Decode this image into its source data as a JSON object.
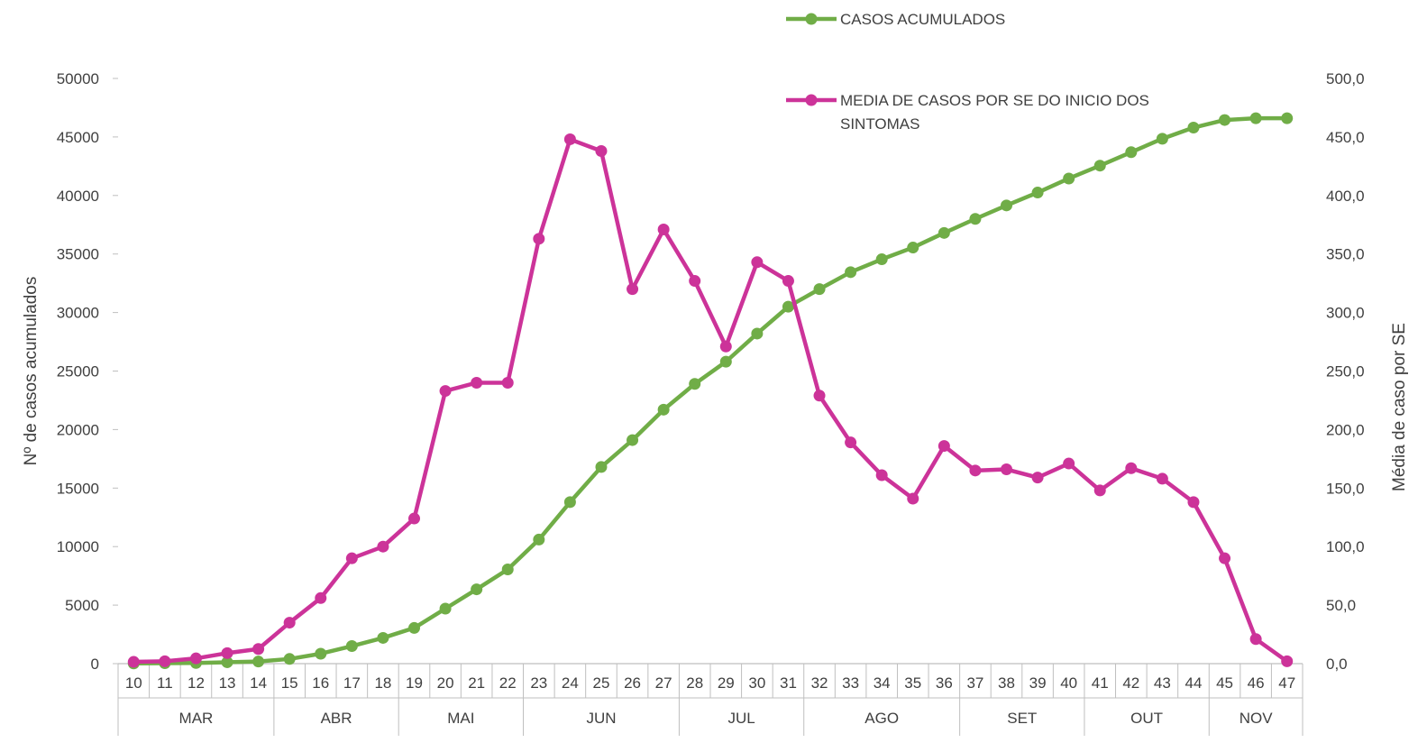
{
  "chart_data": {
    "type": "line",
    "title": "",
    "x": [
      "10",
      "11",
      "12",
      "13",
      "14",
      "15",
      "16",
      "17",
      "18",
      "19",
      "20",
      "21",
      "22",
      "23",
      "24",
      "25",
      "26",
      "27",
      "28",
      "29",
      "30",
      "31",
      "32",
      "33",
      "34",
      "35",
      "36",
      "37",
      "38",
      "39",
      "40",
      "41",
      "42",
      "43",
      "44",
      "45",
      "46",
      "47"
    ],
    "month_groups": [
      {
        "label": "MAR",
        "start": 0,
        "end": 4
      },
      {
        "label": "ABR",
        "start": 5,
        "end": 8
      },
      {
        "label": "MAI",
        "start": 9,
        "end": 12
      },
      {
        "label": "JUN",
        "start": 13,
        "end": 17
      },
      {
        "label": "JUL",
        "start": 18,
        "end": 21
      },
      {
        "label": "AGO",
        "start": 22,
        "end": 26
      },
      {
        "label": "SET",
        "start": 27,
        "end": 30
      },
      {
        "label": "OUT",
        "start": 31,
        "end": 34
      },
      {
        "label": "NOV",
        "start": 35,
        "end": 37
      }
    ],
    "y_left": {
      "label": "Nº de casos acumulados",
      "ylim": [
        0,
        50000
      ],
      "ticks": [
        "0",
        "5000",
        "10000",
        "15000",
        "20000",
        "25000",
        "30000",
        "35000",
        "40000",
        "45000",
        "50000"
      ]
    },
    "y_right": {
      "label": "Média de caso por SE",
      "ylim": [
        0,
        500
      ],
      "ticks": [
        "0,0",
        "50,0",
        "100,0",
        "150,0",
        "200,0",
        "250,0",
        "300,0",
        "350,0",
        "400,0",
        "450,0",
        "500,0"
      ]
    },
    "series": [
      {
        "name": "CASOS ACUMULADOS",
        "axis": "left",
        "color": "#70ad47",
        "values": [
          20,
          40,
          60,
          120,
          180,
          400,
          850,
          1500,
          2200,
          3050,
          4700,
          6350,
          8050,
          10600,
          13800,
          16800,
          19100,
          21700,
          23900,
          25800,
          28200,
          30500,
          32000,
          33450,
          34550,
          35550,
          36800,
          38000,
          39150,
          40250,
          41450,
          42550,
          43700,
          44850,
          45800,
          46450,
          46600,
          46600
        ]
      },
      {
        "name": "MEDIA DE CASOS POR SE DO INICIO DOS SINTOMAS",
        "axis": "right",
        "color": "#cc3399",
        "values": [
          1.5,
          2,
          4.5,
          9,
          12.5,
          35,
          56,
          90,
          100,
          124,
          233,
          240,
          240,
          363,
          448,
          438,
          320,
          371,
          327,
          271,
          343,
          327,
          229,
          189,
          161,
          141,
          186,
          165,
          166,
          159,
          171,
          148,
          167,
          158,
          138,
          90,
          21,
          2
        ]
      }
    ],
    "grid": false,
    "legend": "top-right"
  }
}
